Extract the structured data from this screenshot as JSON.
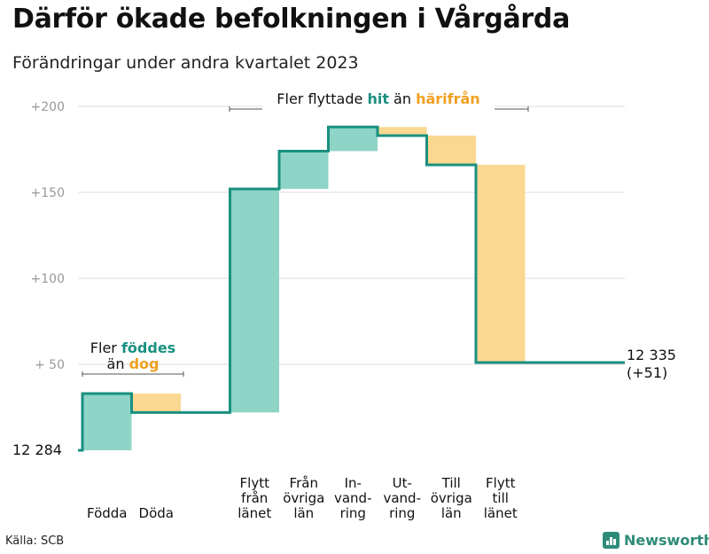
{
  "title": "Därför ökade befolkningen i Vårgårda",
  "subtitle": "Förändringar under andra kvartalet 2023",
  "source": "Källa: SCB",
  "brand": {
    "name": "Newsworthy",
    "icon": "bar-chart-icon"
  },
  "colors": {
    "increase": "#8ed4c7",
    "decrease": "#fad891",
    "line": "#1a9080",
    "accent_hit": "#1a9080",
    "accent_harifran": "#f0a020",
    "grid": "#dcdcdc",
    "tick_text": "#9a9a9a"
  },
  "annotations": {
    "births": {
      "prefix": "Fler ",
      "highlight": "föddes",
      "line2_prefix": "än ",
      "line2_highlight": "dog"
    },
    "migration": {
      "prefix": "Fler flyttade ",
      "highlight1": "hit",
      "middle": " än ",
      "highlight2": "härifrån"
    }
  },
  "chart_data": {
    "type": "waterfall",
    "start_label": "12  284",
    "end_label_line1": "12 335",
    "end_label_line2": "(+51)",
    "y_baseline": 12284,
    "ylim": [
      0,
      210
    ],
    "yticks": [
      {
        "value": 50,
        "label": "+  50"
      },
      {
        "value": 100,
        "label": "+100"
      },
      {
        "value": 150,
        "label": "+150"
      },
      {
        "value": 200,
        "label": "+200"
      }
    ],
    "grid": true,
    "steps": [
      {
        "label": [
          "Födda"
        ],
        "change": 33,
        "type": "increase"
      },
      {
        "label": [
          "Döda"
        ],
        "change": -11,
        "type": "decrease"
      },
      {
        "label": [
          "Flytt",
          "från",
          "länet"
        ],
        "change": 130,
        "type": "increase"
      },
      {
        "label": [
          "Från",
          "övriga",
          "län"
        ],
        "change": 22,
        "type": "increase"
      },
      {
        "label": [
          "In-",
          "vand-",
          "ring"
        ],
        "change": 14,
        "type": "increase"
      },
      {
        "label": [
          "Ut-",
          "vand-",
          "ring"
        ],
        "change": -5,
        "type": "decrease"
      },
      {
        "label": [
          "Till",
          "övriga",
          "län"
        ],
        "change": -17,
        "type": "decrease"
      },
      {
        "label": [
          "Flytt",
          "till",
          "länet"
        ],
        "change": -115,
        "type": "decrease"
      }
    ],
    "final_change": 51
  }
}
